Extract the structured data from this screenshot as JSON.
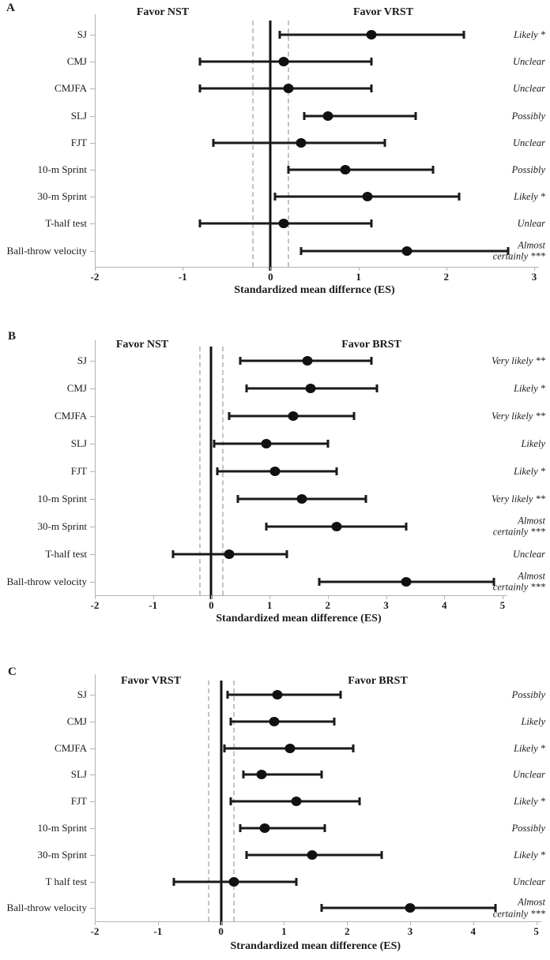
{
  "style": {
    "background": "#ffffff",
    "marker_color": "#111111",
    "errorbar_color": "#1a1a1a",
    "axis_color": "#b3b3b3",
    "dashed_line_color": "#c3c3c3",
    "text_color": "#1a1a1a"
  },
  "chart_data": [
    {
      "panel_label": "A",
      "type": "scatter",
      "subtype": "forest-plot",
      "left_header": "Favor NST",
      "right_header": "Favor VRST",
      "xlabel": "Standardized mean differnce (ES)",
      "xlim": [
        -2,
        3
      ],
      "xticks": [
        "-2",
        "-1",
        "0",
        "1",
        "2",
        "3"
      ],
      "reference_lines": {
        "solid": 0,
        "dashed": [
          -0.2,
          0.2
        ]
      },
      "grid": false,
      "rows": [
        {
          "label": "SJ",
          "es": 1.15,
          "ci_low": 0.1,
          "ci_high": 2.2,
          "inference": "Likely *"
        },
        {
          "label": "CMJ",
          "es": 0.15,
          "ci_low": -0.8,
          "ci_high": 1.15,
          "inference": "Unclear"
        },
        {
          "label": "CMJFA",
          "es": 0.2,
          "ci_low": -0.8,
          "ci_high": 1.15,
          "inference": "Unclear"
        },
        {
          "label": "SLJ",
          "es": 0.65,
          "ci_low": 0.38,
          "ci_high": 1.65,
          "inference": "Possibly"
        },
        {
          "label": "FJT",
          "es": 0.35,
          "ci_low": -0.65,
          "ci_high": 1.3,
          "inference": "Unclear"
        },
        {
          "label": "10-m Sprint",
          "es": 0.85,
          "ci_low": 0.2,
          "ci_high": 1.85,
          "inference": "Possibly"
        },
        {
          "label": "30-m Sprint",
          "es": 1.1,
          "ci_low": 0.05,
          "ci_high": 2.15,
          "inference": "Likely *"
        },
        {
          "label": "T-half test",
          "es": 0.15,
          "ci_low": -0.8,
          "ci_high": 1.15,
          "inference": "Unlear"
        },
        {
          "label": "Ball-throw velocity",
          "es": 1.55,
          "ci_low": 0.35,
          "ci_high": 2.7,
          "inference": "Almost\ncertainly ***"
        }
      ]
    },
    {
      "panel_label": "B",
      "type": "scatter",
      "subtype": "forest-plot",
      "left_header": "Favor NST",
      "right_header": "Favor BRST",
      "xlabel": "Standardized mean difference (ES)",
      "xlim": [
        -2,
        5
      ],
      "xticks": [
        "-2",
        "-1",
        "0",
        "1",
        "2",
        "3",
        "4",
        "5"
      ],
      "reference_lines": {
        "solid": 0,
        "dashed": [
          -0.2,
          0.2
        ]
      },
      "grid": false,
      "rows": [
        {
          "label": "SJ",
          "es": 1.65,
          "ci_low": 0.5,
          "ci_high": 2.75,
          "inference": "Very likely **"
        },
        {
          "label": "CMJ",
          "es": 1.7,
          "ci_low": 0.6,
          "ci_high": 2.85,
          "inference": "Likely *"
        },
        {
          "label": "CMJFA",
          "es": 1.4,
          "ci_low": 0.3,
          "ci_high": 2.45,
          "inference": "Very likely **"
        },
        {
          "label": "SLJ",
          "es": 0.95,
          "ci_low": 0.05,
          "ci_high": 2.0,
          "inference": "Likely"
        },
        {
          "label": "FJT",
          "es": 1.1,
          "ci_low": 0.1,
          "ci_high": 2.15,
          "inference": "Likely *"
        },
        {
          "label": "10-m Sprint",
          "es": 1.55,
          "ci_low": 0.45,
          "ci_high": 2.65,
          "inference": "Very likely **"
        },
        {
          "label": "30-m Sprint",
          "es": 2.15,
          "ci_low": 0.95,
          "ci_high": 3.35,
          "inference": "Almost\ncertainly ***"
        },
        {
          "label": "T-half test",
          "es": 0.3,
          "ci_low": -0.65,
          "ci_high": 1.3,
          "inference": "Unclear"
        },
        {
          "label": "Ball-throw velocity",
          "es": 3.35,
          "ci_low": 1.85,
          "ci_high": 4.85,
          "inference": "Almost\ncertainly ***"
        }
      ]
    },
    {
      "panel_label": "C",
      "type": "scatter",
      "subtype": "forest-plot",
      "left_header": "Favor VRST",
      "right_header": "Favor BRST",
      "xlabel": "Strandardized mean difference (ES)",
      "xlim": [
        -2,
        5
      ],
      "xticks": [
        "-2",
        "-1",
        "0",
        "1",
        "2",
        "3",
        "4",
        "5"
      ],
      "reference_lines": {
        "solid": 0,
        "dashed": [
          -0.2,
          0.2
        ]
      },
      "grid": false,
      "rows": [
        {
          "label": "SJ",
          "es": 0.9,
          "ci_low": 0.1,
          "ci_high": 1.9,
          "inference": "Possibly"
        },
        {
          "label": "CMJ",
          "es": 0.85,
          "ci_low": 0.15,
          "ci_high": 1.8,
          "inference": "Likely"
        },
        {
          "label": "CMJFA",
          "es": 1.1,
          "ci_low": 0.05,
          "ci_high": 2.1,
          "inference": "Likely *"
        },
        {
          "label": "SLJ",
          "es": 0.65,
          "ci_low": 0.35,
          "ci_high": 1.6,
          "inference": "Unclear"
        },
        {
          "label": "FJT",
          "es": 1.2,
          "ci_low": 0.15,
          "ci_high": 2.2,
          "inference": "Likely *"
        },
        {
          "label": "10-m Sprint",
          "es": 0.7,
          "ci_low": 0.3,
          "ci_high": 1.65,
          "inference": "Possibly"
        },
        {
          "label": "30-m Sprint",
          "es": 1.45,
          "ci_low": 0.4,
          "ci_high": 2.55,
          "inference": "Likely *"
        },
        {
          "label": "T half test",
          "es": 0.2,
          "ci_low": -0.75,
          "ci_high": 1.2,
          "inference": "Unclear"
        },
        {
          "label": "Ball-throw velocity",
          "es": 3.0,
          "ci_low": 1.6,
          "ci_high": 4.35,
          "inference": "Almost\ncertainly ***"
        }
      ]
    }
  ]
}
